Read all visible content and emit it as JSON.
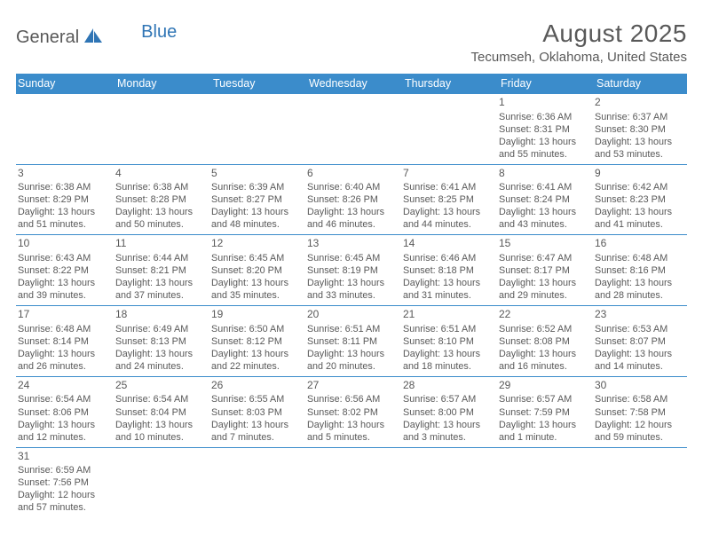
{
  "logo": {
    "general": "General",
    "blue": "Blue"
  },
  "header": {
    "month_title": "August 2025",
    "location": "Tecumseh, Oklahoma, United States"
  },
  "colors": {
    "header_bg": "#3b8ccb",
    "header_text": "#ffffff",
    "cell_text": "#595959",
    "rule": "#3b8ccb",
    "logo_general": "#595959",
    "logo_blue": "#2f75b5"
  },
  "day_headers": [
    "Sunday",
    "Monday",
    "Tuesday",
    "Wednesday",
    "Thursday",
    "Friday",
    "Saturday"
  ],
  "weeks": [
    [
      null,
      null,
      null,
      null,
      null,
      {
        "n": "1",
        "sr": "Sunrise: 6:36 AM",
        "ss": "Sunset: 8:31 PM",
        "d1": "Daylight: 13 hours",
        "d2": "and 55 minutes."
      },
      {
        "n": "2",
        "sr": "Sunrise: 6:37 AM",
        "ss": "Sunset: 8:30 PM",
        "d1": "Daylight: 13 hours",
        "d2": "and 53 minutes."
      }
    ],
    [
      {
        "n": "3",
        "sr": "Sunrise: 6:38 AM",
        "ss": "Sunset: 8:29 PM",
        "d1": "Daylight: 13 hours",
        "d2": "and 51 minutes."
      },
      {
        "n": "4",
        "sr": "Sunrise: 6:38 AM",
        "ss": "Sunset: 8:28 PM",
        "d1": "Daylight: 13 hours",
        "d2": "and 50 minutes."
      },
      {
        "n": "5",
        "sr": "Sunrise: 6:39 AM",
        "ss": "Sunset: 8:27 PM",
        "d1": "Daylight: 13 hours",
        "d2": "and 48 minutes."
      },
      {
        "n": "6",
        "sr": "Sunrise: 6:40 AM",
        "ss": "Sunset: 8:26 PM",
        "d1": "Daylight: 13 hours",
        "d2": "and 46 minutes."
      },
      {
        "n": "7",
        "sr": "Sunrise: 6:41 AM",
        "ss": "Sunset: 8:25 PM",
        "d1": "Daylight: 13 hours",
        "d2": "and 44 minutes."
      },
      {
        "n": "8",
        "sr": "Sunrise: 6:41 AM",
        "ss": "Sunset: 8:24 PM",
        "d1": "Daylight: 13 hours",
        "d2": "and 43 minutes."
      },
      {
        "n": "9",
        "sr": "Sunrise: 6:42 AM",
        "ss": "Sunset: 8:23 PM",
        "d1": "Daylight: 13 hours",
        "d2": "and 41 minutes."
      }
    ],
    [
      {
        "n": "10",
        "sr": "Sunrise: 6:43 AM",
        "ss": "Sunset: 8:22 PM",
        "d1": "Daylight: 13 hours",
        "d2": "and 39 minutes."
      },
      {
        "n": "11",
        "sr": "Sunrise: 6:44 AM",
        "ss": "Sunset: 8:21 PM",
        "d1": "Daylight: 13 hours",
        "d2": "and 37 minutes."
      },
      {
        "n": "12",
        "sr": "Sunrise: 6:45 AM",
        "ss": "Sunset: 8:20 PM",
        "d1": "Daylight: 13 hours",
        "d2": "and 35 minutes."
      },
      {
        "n": "13",
        "sr": "Sunrise: 6:45 AM",
        "ss": "Sunset: 8:19 PM",
        "d1": "Daylight: 13 hours",
        "d2": "and 33 minutes."
      },
      {
        "n": "14",
        "sr": "Sunrise: 6:46 AM",
        "ss": "Sunset: 8:18 PM",
        "d1": "Daylight: 13 hours",
        "d2": "and 31 minutes."
      },
      {
        "n": "15",
        "sr": "Sunrise: 6:47 AM",
        "ss": "Sunset: 8:17 PM",
        "d1": "Daylight: 13 hours",
        "d2": "and 29 minutes."
      },
      {
        "n": "16",
        "sr": "Sunrise: 6:48 AM",
        "ss": "Sunset: 8:16 PM",
        "d1": "Daylight: 13 hours",
        "d2": "and 28 minutes."
      }
    ],
    [
      {
        "n": "17",
        "sr": "Sunrise: 6:48 AM",
        "ss": "Sunset: 8:14 PM",
        "d1": "Daylight: 13 hours",
        "d2": "and 26 minutes."
      },
      {
        "n": "18",
        "sr": "Sunrise: 6:49 AM",
        "ss": "Sunset: 8:13 PM",
        "d1": "Daylight: 13 hours",
        "d2": "and 24 minutes."
      },
      {
        "n": "19",
        "sr": "Sunrise: 6:50 AM",
        "ss": "Sunset: 8:12 PM",
        "d1": "Daylight: 13 hours",
        "d2": "and 22 minutes."
      },
      {
        "n": "20",
        "sr": "Sunrise: 6:51 AM",
        "ss": "Sunset: 8:11 PM",
        "d1": "Daylight: 13 hours",
        "d2": "and 20 minutes."
      },
      {
        "n": "21",
        "sr": "Sunrise: 6:51 AM",
        "ss": "Sunset: 8:10 PM",
        "d1": "Daylight: 13 hours",
        "d2": "and 18 minutes."
      },
      {
        "n": "22",
        "sr": "Sunrise: 6:52 AM",
        "ss": "Sunset: 8:08 PM",
        "d1": "Daylight: 13 hours",
        "d2": "and 16 minutes."
      },
      {
        "n": "23",
        "sr": "Sunrise: 6:53 AM",
        "ss": "Sunset: 8:07 PM",
        "d1": "Daylight: 13 hours",
        "d2": "and 14 minutes."
      }
    ],
    [
      {
        "n": "24",
        "sr": "Sunrise: 6:54 AM",
        "ss": "Sunset: 8:06 PM",
        "d1": "Daylight: 13 hours",
        "d2": "and 12 minutes."
      },
      {
        "n": "25",
        "sr": "Sunrise: 6:54 AM",
        "ss": "Sunset: 8:04 PM",
        "d1": "Daylight: 13 hours",
        "d2": "and 10 minutes."
      },
      {
        "n": "26",
        "sr": "Sunrise: 6:55 AM",
        "ss": "Sunset: 8:03 PM",
        "d1": "Daylight: 13 hours",
        "d2": "and 7 minutes."
      },
      {
        "n": "27",
        "sr": "Sunrise: 6:56 AM",
        "ss": "Sunset: 8:02 PM",
        "d1": "Daylight: 13 hours",
        "d2": "and 5 minutes."
      },
      {
        "n": "28",
        "sr": "Sunrise: 6:57 AM",
        "ss": "Sunset: 8:00 PM",
        "d1": "Daylight: 13 hours",
        "d2": "and 3 minutes."
      },
      {
        "n": "29",
        "sr": "Sunrise: 6:57 AM",
        "ss": "Sunset: 7:59 PM",
        "d1": "Daylight: 13 hours",
        "d2": "and 1 minute."
      },
      {
        "n": "30",
        "sr": "Sunrise: 6:58 AM",
        "ss": "Sunset: 7:58 PM",
        "d1": "Daylight: 12 hours",
        "d2": "and 59 minutes."
      }
    ],
    [
      {
        "n": "31",
        "sr": "Sunrise: 6:59 AM",
        "ss": "Sunset: 7:56 PM",
        "d1": "Daylight: 12 hours",
        "d2": "and 57 minutes."
      },
      null,
      null,
      null,
      null,
      null,
      null
    ]
  ]
}
